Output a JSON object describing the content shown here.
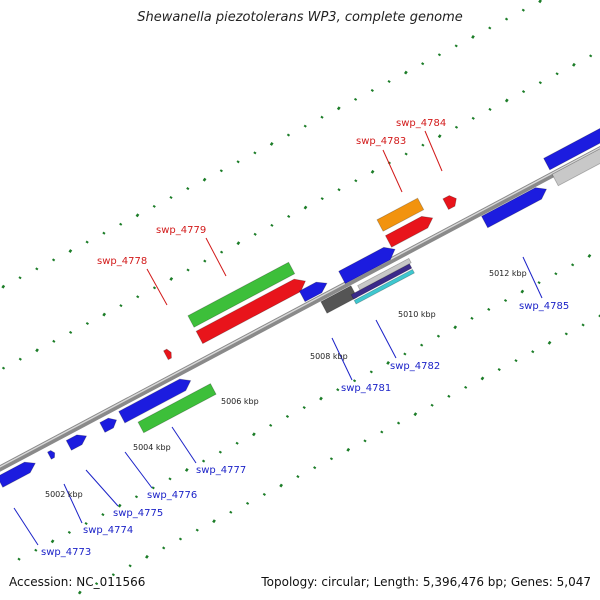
{
  "title": "Shewanella piezotolerans WP3, complete genome",
  "accession": "Accession: NC_011566",
  "summary": "Topology: circular; Length: 5,396,476 bp; Genes: 5,047",
  "colors": {
    "red": "#e8141b",
    "green": "#3dbf3a",
    "blue": "#1c1cdf",
    "orange": "#f2930e",
    "gray_dark": "#555555",
    "gray_light": "#c8c8c8",
    "cyan_band": "#3fc7cf",
    "purple_band": "#3a2a8a",
    "tick": "#1c7d28",
    "backbone": "#8a8a8a",
    "label_red": "#d21a1a",
    "label_blue": "#1c23c8"
  },
  "scale_labels": [
    "5002 kbp",
    "5004 kbp",
    "5006 kbp",
    "5008 kbp",
    "5010 kbp",
    "5012 kbp"
  ],
  "genes": [
    {
      "name": "swp_4773",
      "color": "blue"
    },
    {
      "name": "swp_4774",
      "color": "blue"
    },
    {
      "name": "swp_4775",
      "color": "blue"
    },
    {
      "name": "swp_4776",
      "color": "blue"
    },
    {
      "name": "swp_4777",
      "color": "blue"
    },
    {
      "name": "swp_4778",
      "color": "red"
    },
    {
      "name": "swp_4779",
      "color": "red"
    },
    {
      "name": "swp_4781",
      "color": "blue"
    },
    {
      "name": "swp_4782",
      "color": "blue"
    },
    {
      "name": "swp_4783",
      "color": "red"
    },
    {
      "name": "swp_4784",
      "color": "red"
    },
    {
      "name": "swp_4785",
      "color": "blue"
    }
  ]
}
